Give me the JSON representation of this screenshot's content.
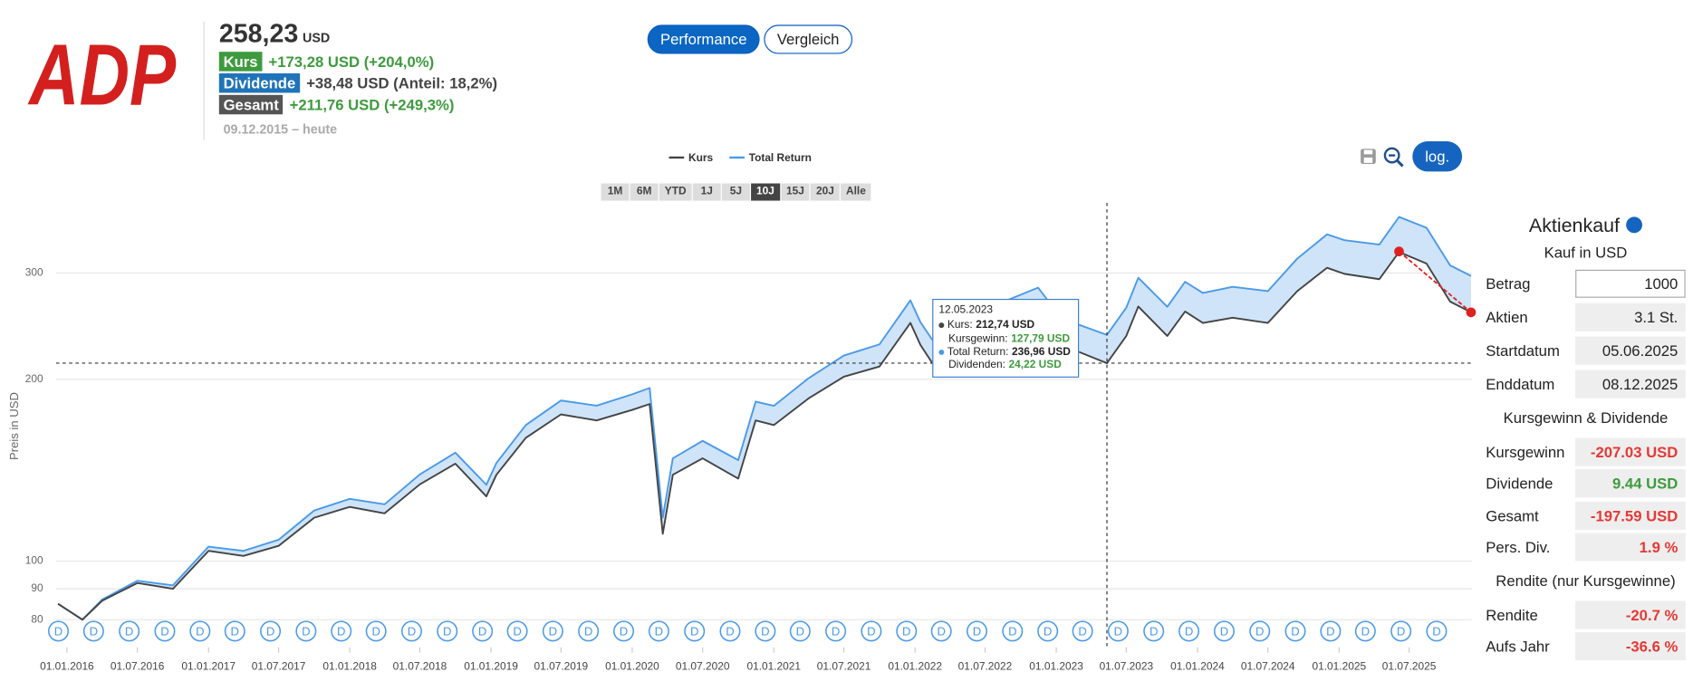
{
  "logo": "ADP",
  "header": {
    "price": "258,23",
    "currency": "USD",
    "rows": [
      {
        "badge": "Kurs",
        "text": "+173,28 USD (+204,0%)",
        "badge_color": "#3d9b3d",
        "text_color": "#3d9b3d"
      },
      {
        "badge": "Dividende",
        "text": "+38,48 USD (Anteil: 18,2%)",
        "badge_color": "#1f74b9",
        "text_color": "#444444"
      },
      {
        "badge": "Gesamt",
        "text": "+211,76 USD (+249,3%)",
        "badge_color": "#555555",
        "text_color": "#3d9b3d"
      }
    ],
    "period": "09.12.2015 – heute"
  },
  "tabs": [
    "Performance",
    "Vergleich"
  ],
  "active_tab": 0,
  "ranges": [
    "1M",
    "6M",
    "YTD",
    "1J",
    "5J",
    "10J",
    "15J",
    "20J",
    "Alle"
  ],
  "active_range": 5,
  "log_button": "log.",
  "chart_data": {
    "type": "line",
    "ylabel": "Preis in USD",
    "log_scale": true,
    "grid": true,
    "x": [
      "2015-12-09",
      "2016-02-10",
      "2016-04-01",
      "2016-07-01",
      "2016-10-01",
      "2017-01-01",
      "2017-04-01",
      "2017-07-01",
      "2017-10-01",
      "2018-01-01",
      "2018-04-01",
      "2018-07-01",
      "2018-10-01",
      "2018-12-20",
      "2019-01-15",
      "2019-04-01",
      "2019-07-01",
      "2019-10-01",
      "2020-01-01",
      "2020-02-15",
      "2020-03-20",
      "2020-04-15",
      "2020-07-01",
      "2020-10-01",
      "2020-11-15",
      "2021-01-01",
      "2021-04-01",
      "2021-07-01",
      "2021-10-01",
      "2021-12-20",
      "2022-01-15",
      "2022-03-01",
      "2022-06-01",
      "2022-08-15",
      "2022-11-15",
      "2023-01-15",
      "2023-05-12",
      "2023-07-01",
      "2023-08-01",
      "2023-10-15",
      "2023-11-30",
      "2024-01-15",
      "2024-04-01",
      "2024-07-01",
      "2024-09-15",
      "2024-12-01",
      "2025-01-15",
      "2025-04-15",
      "2025-06-05",
      "2025-08-15",
      "2025-10-15",
      "2025-12-08"
    ],
    "series": [
      {
        "name": "Kurs",
        "color": "#444444",
        "values": [
          85,
          80,
          86,
          92,
          90,
          104,
          102,
          106,
          118,
          123,
          120,
          134,
          145,
          128,
          139,
          160,
          175,
          171,
          178,
          182,
          111,
          139,
          148,
          137,
          171,
          168,
          186,
          202,
          210,
          248,
          228,
          206,
          219,
          244,
          257,
          228,
          212.74,
          236,
          264,
          236,
          259,
          248,
          253,
          248,
          280,
          306,
          299,
          293,
          325,
          311,
          269,
          258.23
        ]
      },
      {
        "name": "Total Return",
        "color": "#4a9ae8",
        "values": [
          85,
          80,
          86.4,
          92.8,
          91.2,
          105.7,
          104,
          108.5,
          121.3,
          126.8,
          124.2,
          139.2,
          151.2,
          133.8,
          145.4,
          168,
          184.5,
          180.9,
          188.9,
          193.5,
          118.1,
          148,
          158.2,
          147,
          183.7,
          180.8,
          200.9,
          219,
          228.5,
          270.3,
          248.7,
          225.4,
          240.5,
          268.4,
          283.7,
          252.2,
          236.96,
          262.9,
          294.6,
          263.8,
          290.1,
          278,
          284.6,
          280,
          317,
          347.6,
          340,
          334.3,
          371.5,
          356.4,
          308.8,
          296.7
        ]
      }
    ],
    "band_color": "#cfe4f8",
    "xlim": [
      "2015-12-04",
      "2025-12-10"
    ],
    "xticks": [
      {
        "value": "2016-01-01",
        "label": "01.01.2016"
      },
      {
        "value": "2016-07-01",
        "label": "01.07.2016"
      },
      {
        "value": "2017-01-01",
        "label": "01.01.2017"
      },
      {
        "value": "2017-07-01",
        "label": "01.07.2017"
      },
      {
        "value": "2018-01-01",
        "label": "01.01.2018"
      },
      {
        "value": "2018-07-01",
        "label": "01.07.2018"
      },
      {
        "value": "2019-01-01",
        "label": "01.01.2019"
      },
      {
        "value": "2019-07-01",
        "label": "01.07.2019"
      },
      {
        "value": "2020-01-01",
        "label": "01.01.2020"
      },
      {
        "value": "2020-07-01",
        "label": "01.07.2020"
      },
      {
        "value": "2021-01-01",
        "label": "01.01.2021"
      },
      {
        "value": "2021-07-01",
        "label": "01.07.2021"
      },
      {
        "value": "2022-01-01",
        "label": "01.01.2022"
      },
      {
        "value": "2022-07-01",
        "label": "01.07.2022"
      },
      {
        "value": "2023-01-01",
        "label": "01.01.2023"
      },
      {
        "value": "2023-07-01",
        "label": "01.07.2023"
      },
      {
        "value": "2024-01-01",
        "label": "01.01.2024"
      },
      {
        "value": "2024-07-01",
        "label": "01.07.2024"
      },
      {
        "value": "2025-01-01",
        "label": "01.01.2025"
      },
      {
        "value": "2025-07-01",
        "label": "01.07.2025"
      }
    ],
    "ylim": [
      72,
      392
    ],
    "yticks": [
      80,
      90,
      100,
      200,
      300
    ],
    "dividend_markers": {
      "label": "D",
      "color": "#4a9ae8",
      "x": [
        "2015-12-10",
        "2016-03-10",
        "2016-06-10",
        "2016-09-10",
        "2016-12-10",
        "2017-03-10",
        "2017-06-10",
        "2017-09-10",
        "2017-12-10",
        "2018-03-10",
        "2018-06-10",
        "2018-09-10",
        "2018-12-10",
        "2019-03-10",
        "2019-06-10",
        "2019-09-10",
        "2019-12-10",
        "2020-03-10",
        "2020-06-10",
        "2020-09-10",
        "2020-12-10",
        "2021-03-10",
        "2021-06-10",
        "2021-09-10",
        "2021-12-10",
        "2022-03-10",
        "2022-06-10",
        "2022-09-10",
        "2022-12-10",
        "2023-03-10",
        "2023-06-10",
        "2023-09-10",
        "2023-12-10",
        "2024-03-10",
        "2024-06-10",
        "2024-09-10",
        "2024-12-10",
        "2025-03-10",
        "2025-06-10",
        "2025-09-10"
      ]
    },
    "purchase_line": {
      "color": "#e02020",
      "x": [
        "2025-06-05",
        "2025-12-08"
      ],
      "values": [
        325.65,
        258.23
      ]
    }
  },
  "tooltip": {
    "date": "12.05.2023",
    "rows": [
      {
        "label": "Kurs:",
        "value": "212,74 USD",
        "bullet": "#444444",
        "color": "#222222"
      },
      {
        "label": "Kursgewinn:",
        "value": "127,79 USD",
        "color": "#3d9b3d"
      },
      {
        "label": "Total Return:",
        "value": "236,96 USD",
        "bullet": "#4a9ae8",
        "color": "#222222"
      },
      {
        "label": "Dividenden:",
        "value": "24,22 USD",
        "color": "#3d9b3d"
      }
    ]
  },
  "calculator": {
    "title": "Aktienkauf",
    "subtitle": "Kauf in USD",
    "inputs": [
      {
        "label": "Betrag",
        "value": "1000",
        "editable": true
      },
      {
        "label": "Aktien",
        "value": "3.1 St."
      },
      {
        "label": "Startdatum",
        "value": "05.06.2025"
      },
      {
        "label": "Enddatum",
        "value": "08.12.2025"
      }
    ],
    "sections": [
      {
        "title": "Kursgewinn & Dividende",
        "rows": [
          {
            "label": "Kursgewinn",
            "value": "-207.03 USD",
            "color": "#e53935"
          },
          {
            "label": "Dividende",
            "value": "9.44 USD",
            "color": "#3d9b3d"
          },
          {
            "label": "Gesamt",
            "value": "-197.59 USD",
            "color": "#e53935"
          },
          {
            "label": "Pers. Div.",
            "value": "1.9 %",
            "color": "#e53935"
          }
        ]
      },
      {
        "title": "Rendite (nur Kursgewinne)",
        "rows": [
          {
            "label": "Rendite",
            "value": "-20.7 %",
            "color": "#e53935"
          },
          {
            "label": "Aufs Jahr",
            "value": "-36.6 %",
            "color": "#e53935"
          }
        ]
      }
    ]
  }
}
